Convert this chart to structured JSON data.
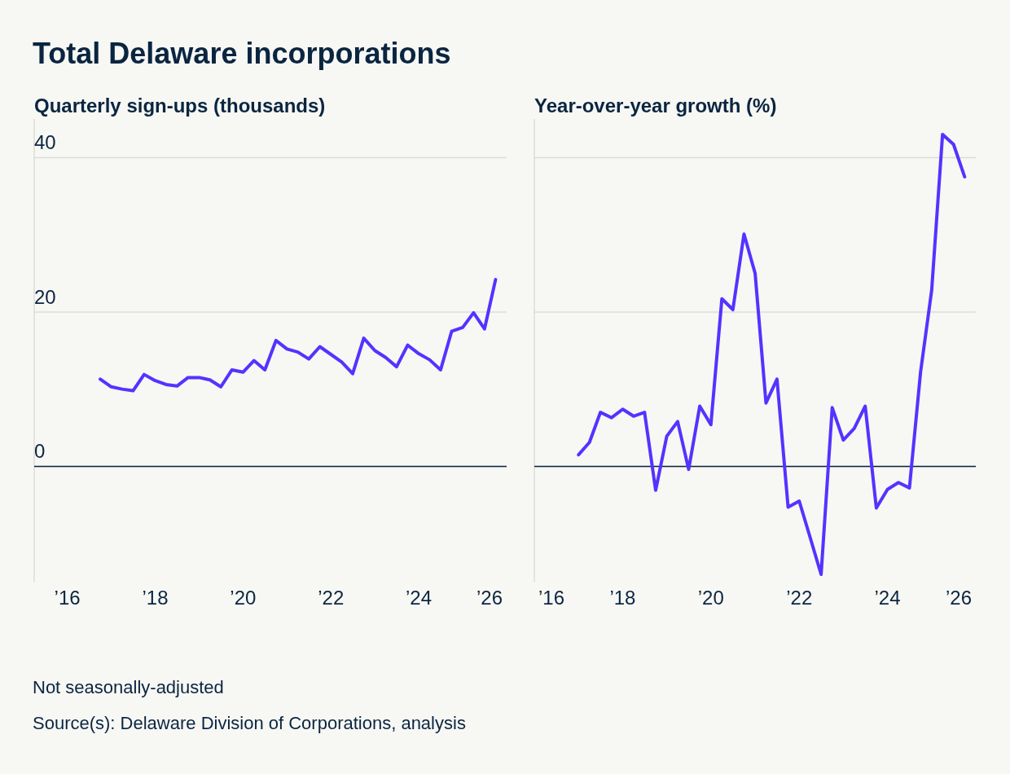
{
  "chart_data": [
    {
      "type": "line",
      "title": "Total Delaware incorporations",
      "ylabel": "Quarterly sign-ups (thousands)",
      "x": [
        "2016-10",
        "2017-01",
        "2017-04",
        "2017-07",
        "2017-10",
        "2018-01",
        "2018-04",
        "2018-07",
        "2018-10",
        "2019-01",
        "2019-04",
        "2019-07",
        "2019-10",
        "2020-01",
        "2020-04",
        "2020-07",
        "2020-10",
        "2021-01",
        "2021-04",
        "2021-07",
        "2021-10",
        "2022-01",
        "2022-04",
        "2022-07",
        "2022-10",
        "2023-01",
        "2023-04",
        "2023-07",
        "2023-10",
        "2024-01",
        "2024-04",
        "2024-07",
        "2024-10",
        "2025-01",
        "2025-04",
        "2025-07",
        "2025-10"
      ],
      "series": [
        {
          "color": "#5433ff",
          "values": [
            11.3,
            10.3,
            10.0,
            9.8,
            11.9,
            11.1,
            10.6,
            10.4,
            11.5,
            11.5,
            11.2,
            10.3,
            12.5,
            12.2,
            13.7,
            12.5,
            16.3,
            15.2,
            14.8,
            13.9,
            15.5,
            14.5,
            13.5,
            12.0,
            16.6,
            15.0,
            14.1,
            12.9,
            15.7,
            14.6,
            13.8,
            12.5,
            17.5,
            18.0,
            19.9,
            17.8,
            24.2
          ]
        }
      ],
      "xlim": [
        "2015-04",
        "2026-01"
      ],
      "xticks": [
        {
          "value": "2016",
          "label": "’16"
        },
        {
          "value": "2018",
          "label": "’18"
        },
        {
          "value": "2020",
          "label": "’20"
        },
        {
          "value": "2022",
          "label": "’22"
        },
        {
          "value": "2024",
          "label": "’24"
        },
        {
          "value": "2026",
          "label": "’26"
        }
      ],
      "ylim": [
        -15,
        45
      ],
      "yticks": [
        0,
        20,
        40
      ],
      "grid": "y",
      "marker": "none",
      "ref_lines": [
        {
          "axis": "y",
          "value": 0,
          "color": "#0a2540"
        }
      ],
      "annotations": [
        "Not seasonally-adjusted",
        "Source(s): Delaware Division of Corporations, analysis"
      ]
    },
    {
      "type": "line",
      "ylabel": "Year-over-year growth (%)",
      "x": [
        "2017-01",
        "2017-04",
        "2017-07",
        "2017-10",
        "2018-01",
        "2018-04",
        "2018-07",
        "2018-10",
        "2019-01",
        "2019-04",
        "2019-07",
        "2019-10",
        "2020-01",
        "2020-04",
        "2020-07",
        "2020-10",
        "2021-01",
        "2021-04",
        "2021-07",
        "2021-10",
        "2022-01",
        "2022-04",
        "2022-07",
        "2022-10",
        "2023-01",
        "2023-04",
        "2023-07",
        "2023-10",
        "2024-01",
        "2024-04",
        "2024-07",
        "2024-10",
        "2025-01",
        "2025-04",
        "2025-07",
        "2025-10"
      ],
      "series": [
        {
          "color": "#5433ff",
          "values": [
            1.5,
            3.1,
            7.0,
            6.3,
            7.4,
            6.5,
            7.0,
            -3.1,
            3.9,
            5.8,
            -0.4,
            7.8,
            5.4,
            21.7,
            20.3,
            30.1,
            25.0,
            8.2,
            11.3,
            -5.3,
            -4.5,
            -9.2,
            -14.0,
            7.6,
            3.4,
            4.9,
            7.8,
            -5.4,
            -3.0,
            -2.1,
            -2.8,
            12.2,
            22.8,
            43.0,
            41.7,
            37.5
          ]
        }
      ],
      "xlim": [
        "2016-01",
        "2026-01"
      ],
      "xticks": [
        {
          "value": "2016",
          "label": "’16"
        },
        {
          "value": "2018",
          "label": "’18"
        },
        {
          "value": "2020",
          "label": "’20"
        },
        {
          "value": "2022",
          "label": "’22"
        },
        {
          "value": "2024",
          "label": "’24"
        },
        {
          "value": "2026",
          "label": "’26"
        }
      ],
      "ylim": [
        -15,
        45
      ],
      "yticks": [
        0,
        20,
        40
      ],
      "tick_labels": "x",
      "grid": "y",
      "marker": "none",
      "ref_lines": [
        {
          "axis": "y",
          "value": 0,
          "color": "#0a2540"
        }
      ]
    }
  ]
}
